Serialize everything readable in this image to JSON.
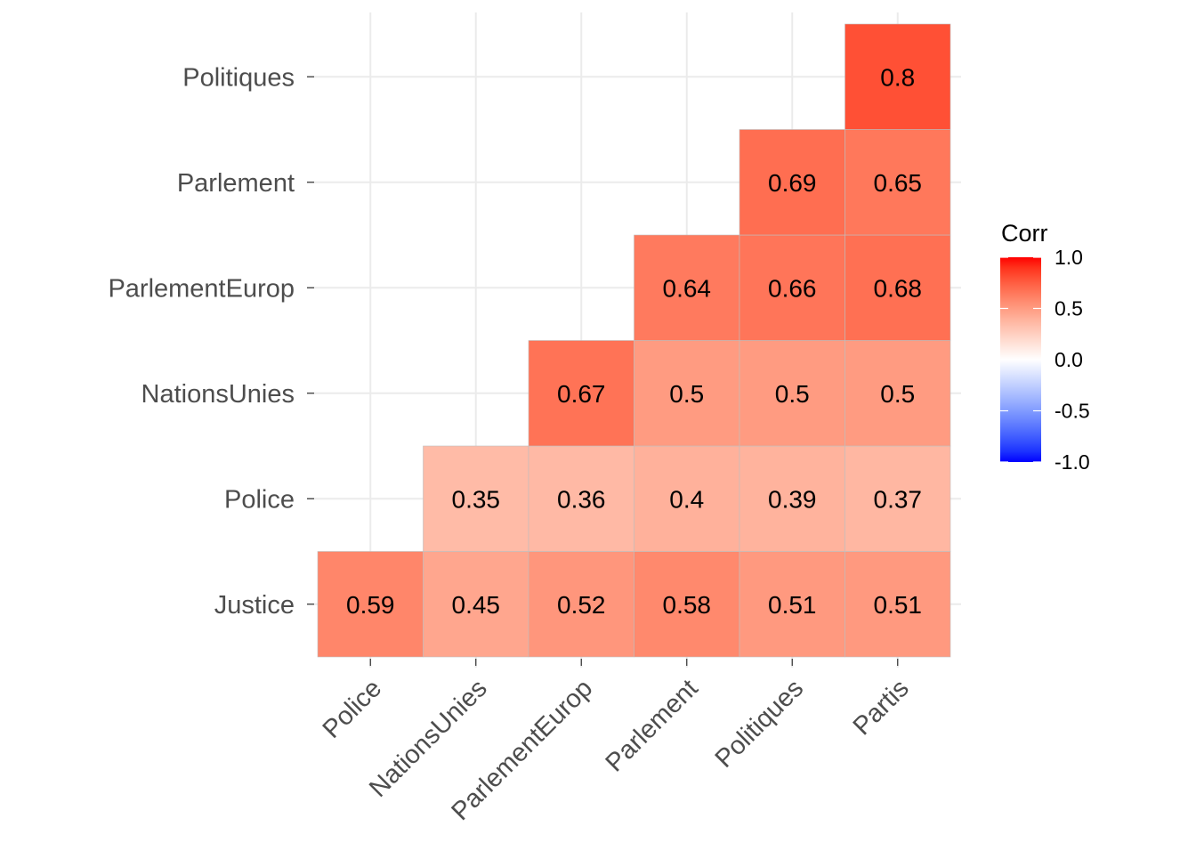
{
  "chart_data": {
    "type": "heatmap",
    "title": "",
    "xlabel": "",
    "ylabel": "",
    "x_categories": [
      "Police",
      "NationsUnies",
      "ParlementEurop",
      "Parlement",
      "Politiques",
      "Partis"
    ],
    "y_categories": [
      "Justice",
      "Police",
      "NationsUnies",
      "ParlementEurop",
      "Parlement",
      "Politiques"
    ],
    "cells": [
      {
        "x": "Police",
        "y": "Justice",
        "value": 0.59
      },
      {
        "x": "NationsUnies",
        "y": "Justice",
        "value": 0.45
      },
      {
        "x": "ParlementEurop",
        "y": "Justice",
        "value": 0.52
      },
      {
        "x": "Parlement",
        "y": "Justice",
        "value": 0.58
      },
      {
        "x": "Politiques",
        "y": "Justice",
        "value": 0.51
      },
      {
        "x": "Partis",
        "y": "Justice",
        "value": 0.51
      },
      {
        "x": "NationsUnies",
        "y": "Police",
        "value": 0.35
      },
      {
        "x": "ParlementEurop",
        "y": "Police",
        "value": 0.36
      },
      {
        "x": "Parlement",
        "y": "Police",
        "value": 0.4
      },
      {
        "x": "Politiques",
        "y": "Police",
        "value": 0.39
      },
      {
        "x": "Partis",
        "y": "Police",
        "value": 0.37
      },
      {
        "x": "ParlementEurop",
        "y": "NationsUnies",
        "value": 0.67
      },
      {
        "x": "Parlement",
        "y": "NationsUnies",
        "value": 0.5
      },
      {
        "x": "Politiques",
        "y": "NationsUnies",
        "value": 0.5
      },
      {
        "x": "Partis",
        "y": "NationsUnies",
        "value": 0.5
      },
      {
        "x": "Parlement",
        "y": "ParlementEurop",
        "value": 0.64
      },
      {
        "x": "Politiques",
        "y": "ParlementEurop",
        "value": 0.66
      },
      {
        "x": "Partis",
        "y": "ParlementEurop",
        "value": 0.68
      },
      {
        "x": "Politiques",
        "y": "Parlement",
        "value": 0.69
      },
      {
        "x": "Partis",
        "y": "Parlement",
        "value": 0.65
      },
      {
        "x": "Partis",
        "y": "Politiques",
        "value": 0.8
      }
    ],
    "legend": {
      "title": "Corr",
      "position": "right",
      "range": [
        -1,
        1
      ],
      "ticks": [
        1.0,
        0.5,
        0.0,
        -0.5,
        -1.0
      ],
      "tick_labels": [
        "1.0",
        "0.5",
        "0.0",
        "-0.5",
        "-1.0"
      ],
      "colors": {
        "low": "#0000FF",
        "mid": "#FFFFFF",
        "high": "#FF0000"
      }
    },
    "grid": true
  }
}
